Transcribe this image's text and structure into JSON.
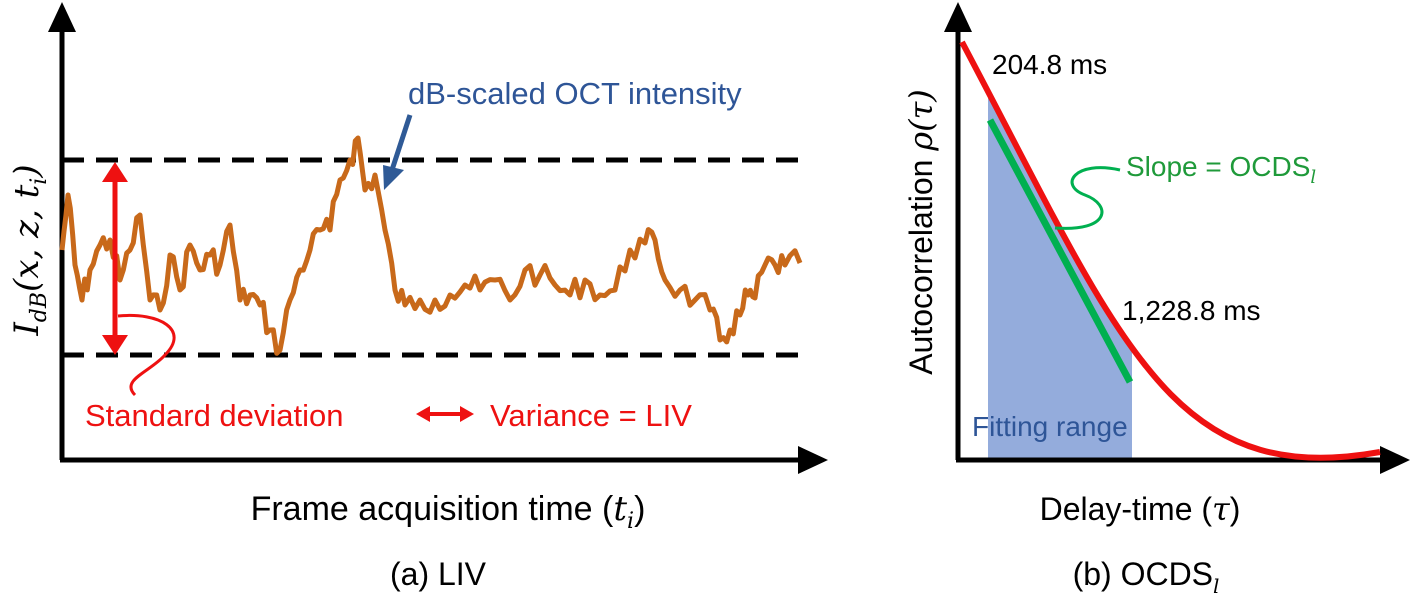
{
  "panel_a": {
    "ylabel": {
      "main": "I",
      "sub": "dB",
      "args": "(x, z, t",
      "args_sub": "i",
      "close": ")"
    },
    "xlabel": {
      "text": "Frame acquisition time (",
      "var": "t",
      "sub": "i",
      "close": ")"
    },
    "annotation_intensity": "dB-scaled OCT intensity",
    "annotation_std": "Standard deviation",
    "annotation_liv": "Variance = LIV",
    "caption": "(a) LIV"
  },
  "panel_b": {
    "ylabel": {
      "text": "Autocorrelation ",
      "var": "ρ(τ)"
    },
    "xlabel": {
      "text": "Delay-time (",
      "var": "τ",
      "close": ")"
    },
    "label_start": "204.8 ms",
    "label_end": "1,228.8 ms",
    "slope_label": {
      "text": "Slope = OCDS",
      "sub": "l"
    },
    "fitting_label": "Fitting range",
    "caption": {
      "text": "(b) OCDS",
      "sub": "l"
    }
  },
  "colors": {
    "signal": "#c8691a",
    "red": "#ee1111",
    "blue_text": "#2e5597",
    "blue_arrow": "#2f5a96",
    "green_text": "#1f9a3a",
    "green": "#00b050",
    "fit_fill": "#94acdc"
  }
}
